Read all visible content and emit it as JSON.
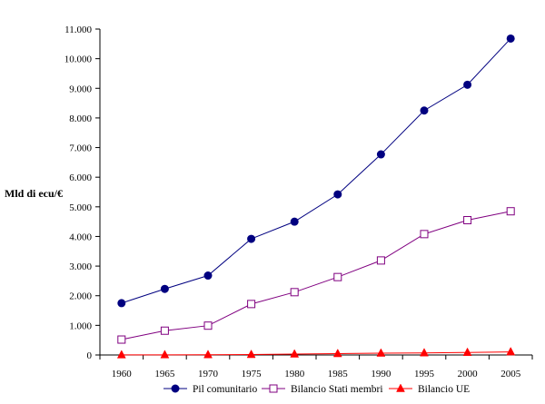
{
  "chart_data": {
    "type": "line",
    "title": "",
    "xlabel": "",
    "ylabel": "Mld di ecu/€",
    "x": [
      "1960",
      "1965",
      "1970",
      "1975",
      "1980",
      "1985",
      "1990",
      "1995",
      "2000",
      "2005"
    ],
    "ylim": [
      0,
      11000
    ],
    "yticks": [
      0,
      1000,
      2000,
      3000,
      4000,
      5000,
      6000,
      7000,
      8000,
      9000,
      10000,
      11000
    ],
    "ytick_labels": [
      "0",
      "1.000",
      "2.000",
      "3.000",
      "4.000",
      "5.000",
      "6.000",
      "7.000",
      "8.000",
      "9.000",
      "10.000",
      "11.000"
    ],
    "grid": false,
    "legend_position": "bottom",
    "series": [
      {
        "name": "Pil comunitario",
        "marker": "filled-circle",
        "color": "#000080",
        "values": [
          1750,
          2230,
          2680,
          3920,
          4500,
          5420,
          6770,
          8250,
          9120,
          10680
        ]
      },
      {
        "name": "Bilancio Stati membri",
        "marker": "open-square",
        "color": "#800080",
        "values": [
          520,
          820,
          990,
          1720,
          2120,
          2630,
          3190,
          4080,
          4550,
          4850
        ]
      },
      {
        "name": "Bilancio UE",
        "marker": "filled-triangle",
        "color": "#ff0000",
        "values": [
          2,
          5,
          8,
          15,
          30,
          45,
          60,
          70,
          85,
          105
        ]
      }
    ]
  }
}
